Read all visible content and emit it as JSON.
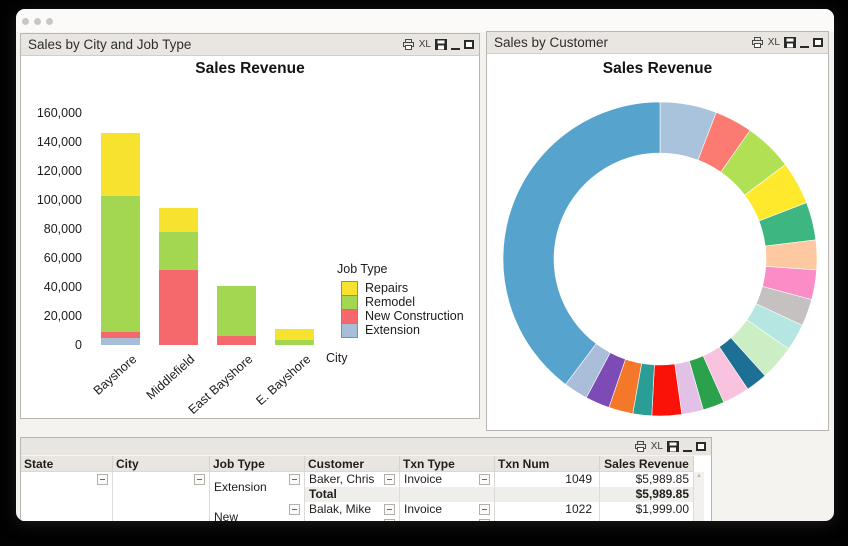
{
  "window": {
    "controls": [
      "close",
      "minimize",
      "zoom"
    ]
  },
  "panel_controls": {
    "print": "print",
    "excel_label": "XL",
    "save": "save",
    "minimize": "minimize",
    "maximize": "maximize"
  },
  "panels": {
    "bar_panel_title": "Sales by City and Job Type",
    "donut_panel_title": "Sales by Customer"
  },
  "chart_data": [
    {
      "type": "bar",
      "stacked": true,
      "title": "Sales Revenue",
      "xlabel": "City",
      "ylabel": "",
      "categories": [
        "Bayshore",
        "Middlefield",
        "East Bayshore",
        "E. Bayshore"
      ],
      "series": [
        {
          "name": "Extension",
          "color": "#a7bed8",
          "values": [
            4800,
            0,
            0,
            0
          ]
        },
        {
          "name": "New Construction",
          "color": "#f5696c",
          "values": [
            4200,
            51700,
            6200,
            0
          ]
        },
        {
          "name": "Remodel",
          "color": "#a3d752",
          "values": [
            93800,
            26200,
            34500,
            3500
          ]
        },
        {
          "name": "Repairs",
          "color": "#f8e230",
          "values": [
            43400,
            16600,
            0,
            7500
          ]
        }
      ],
      "legend": {
        "title": "Job Type",
        "order": [
          "Repairs",
          "Remodel",
          "New Construction",
          "Extension"
        ],
        "position": "right"
      },
      "ylim": [
        0,
        160000
      ],
      "ytick_labels": [
        "0",
        "20,000",
        "40,000",
        "60,000",
        "80,000",
        "100,000",
        "120,000",
        "140,000",
        "160,000"
      ],
      "grid": false
    },
    {
      "type": "pie",
      "donut": true,
      "title": "Sales Revenue",
      "legend": "none",
      "note": "unlabeled customer segments; sizes in degrees clockwise from 12 o'clock",
      "segments": [
        {
          "color": "#a9c3dd",
          "deg": 21
        },
        {
          "color": "#fb7b72",
          "deg": 14
        },
        {
          "color": "#b2e054",
          "deg": 18
        },
        {
          "color": "#ffe92c",
          "deg": 16
        },
        {
          "color": "#3eb682",
          "deg": 14
        },
        {
          "color": "#fec9a0",
          "deg": 11
        },
        {
          "color": "#fb8cc5",
          "deg": 11
        },
        {
          "color": "#c5c1c1",
          "deg": 10
        },
        {
          "color": "#b6e6e2",
          "deg": 10
        },
        {
          "color": "#cbeec4",
          "deg": 13
        },
        {
          "color": "#1e6f95",
          "deg": 8
        },
        {
          "color": "#f9c2df",
          "deg": 10
        },
        {
          "color": "#2ba14c",
          "deg": 8
        },
        {
          "color": "#e3c1e6",
          "deg": 8
        },
        {
          "color": "#fa1107",
          "deg": 11
        },
        {
          "color": "#2a9d96",
          "deg": 7
        },
        {
          "color": "#f4772a",
          "deg": 9
        },
        {
          "color": "#7d4bb5",
          "deg": 9
        },
        {
          "color": "#aabdd9",
          "deg": 9
        },
        {
          "color": "#56a3cd",
          "deg": 143
        }
      ]
    }
  ],
  "table": {
    "columns": [
      "State",
      "City",
      "Job Type",
      "Customer",
      "Txn Type",
      "Txn Num",
      "Sales Revenue"
    ],
    "groups": {
      "state": "",
      "city": "",
      "job_type_group_1": "Extension",
      "job_type_group_2": "New"
    },
    "rows": [
      {
        "customer": "Baker, Chris",
        "txn_type": "Invoice",
        "txn_num": "1049",
        "sales_revenue": "$5,989.85"
      },
      {
        "total_label": "Total",
        "sales_revenue": "$5,989.85"
      },
      {
        "customer": "Balak, Mike",
        "txn_type": "Invoice",
        "txn_num": "1022",
        "sales_revenue": "$1,999.00"
      }
    ],
    "scroll_up_arrow": "▲"
  }
}
